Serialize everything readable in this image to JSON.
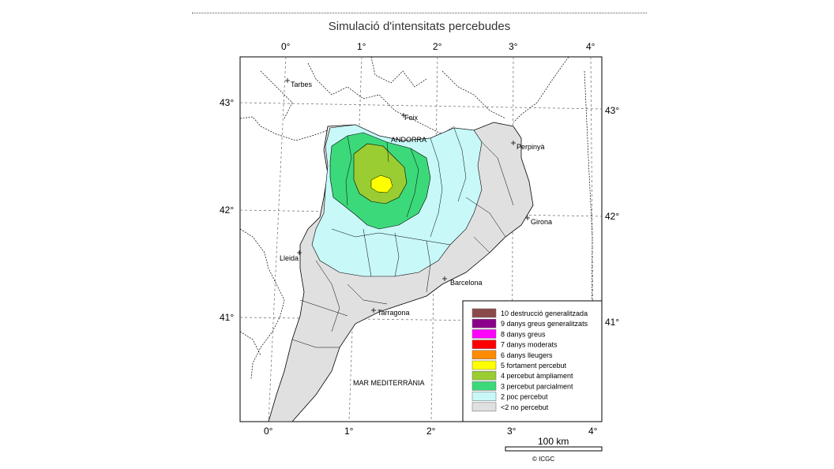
{
  "title": "Simulació d'intensitats percebudes",
  "axes": {
    "top_lon": [
      "0°",
      "1°",
      "2°",
      "3°",
      "4°"
    ],
    "bottom_lon": [
      "0°",
      "1°",
      "2°",
      "3°",
      "4°"
    ],
    "left_lat": [
      "43°",
      "42°",
      "41°"
    ],
    "right_lat": [
      "43°",
      "42°",
      "41°"
    ]
  },
  "places": {
    "tarbes": "Tarbes",
    "foix": "Foix",
    "andorra": "ANDORRA",
    "perpinya": "Perpinyà",
    "girona": "Girona",
    "lleida": "Lleida",
    "barcelona": "Barcelona",
    "tarragona": "Tarragona",
    "sea": "MAR MEDITERRÀNIA"
  },
  "legend": [
    {
      "label": "10 destrucció generalitzada",
      "color": "#8b4a4a"
    },
    {
      "label": "9 danys greus generalitzats",
      "color": "#8b008b"
    },
    {
      "label": "8 danys greus",
      "color": "#ff00ff"
    },
    {
      "label": "7 danys moderats",
      "color": "#ff0000"
    },
    {
      "label": "6 danys lleugers",
      "color": "#ff8c00"
    },
    {
      "label": "5 fortament percebut",
      "color": "#ffff00"
    },
    {
      "label": "4 percebut àmpliament",
      "color": "#9acd32"
    },
    {
      "label": "3 percebut parcialment",
      "color": "#3cd97a"
    },
    {
      "label": "2 poc percebut",
      "color": "#c8f8f8"
    },
    {
      "label": "<2 no percebut",
      "color": "#e0e0e0"
    }
  ],
  "scale_bar": "100 km",
  "credit": "© ICGC"
}
